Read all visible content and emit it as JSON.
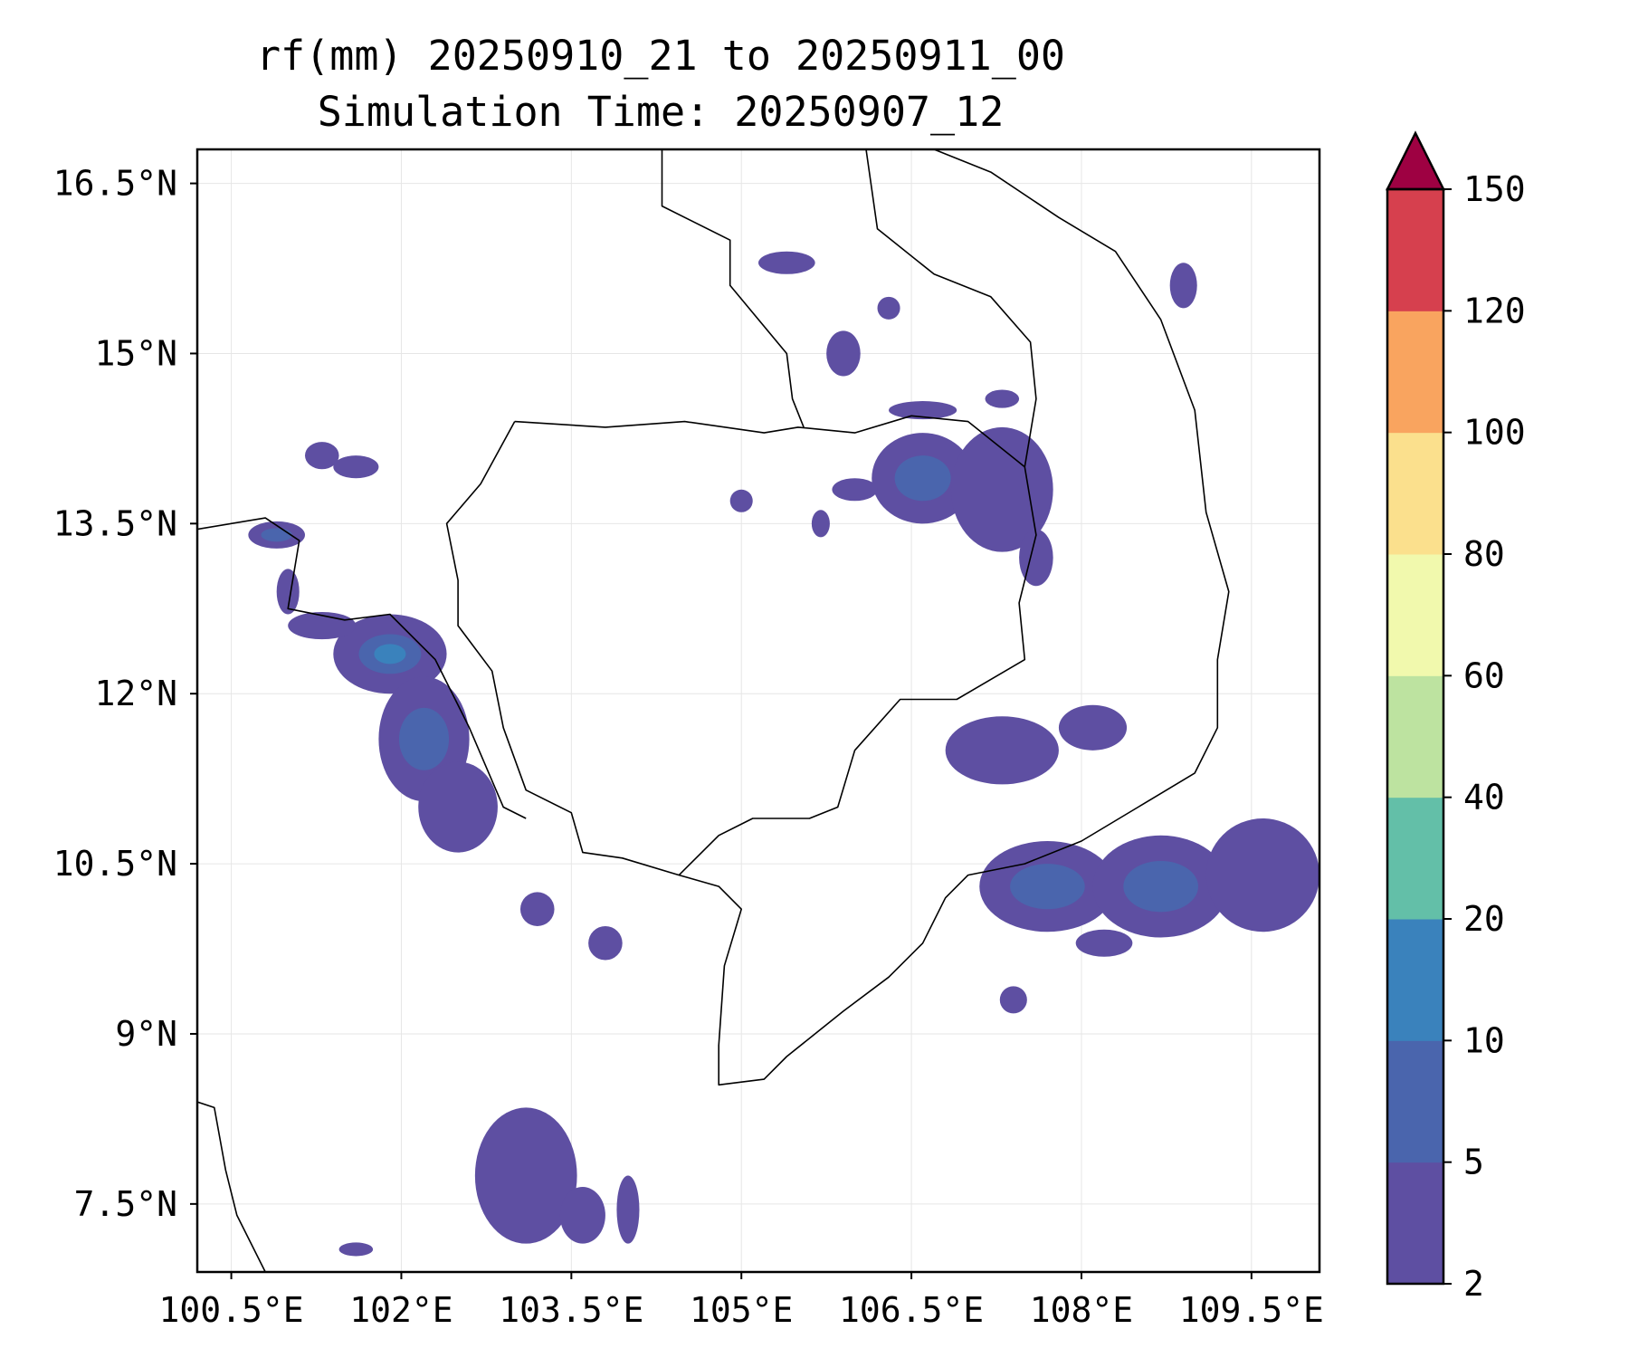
{
  "title": {
    "line1": "rf(mm) 20250910_21 to 20250911_00",
    "line2": "Simulation Time: 20250907_12"
  },
  "map": {
    "lon_range": [
      100.2,
      110.1
    ],
    "lat_range": [
      6.9,
      16.8
    ],
    "lon_ticks": [
      {
        "value": 100.5,
        "label": "100.5°E"
      },
      {
        "value": 102.0,
        "label": "102°E"
      },
      {
        "value": 103.5,
        "label": "103.5°E"
      },
      {
        "value": 105.0,
        "label": "105°E"
      },
      {
        "value": 106.5,
        "label": "106.5°E"
      },
      {
        "value": 108.0,
        "label": "108°E"
      },
      {
        "value": 109.5,
        "label": "109.5°E"
      }
    ],
    "lat_ticks": [
      {
        "value": 16.5,
        "label": "16.5°N"
      },
      {
        "value": 15.0,
        "label": "15°N"
      },
      {
        "value": 13.5,
        "label": "13.5°N"
      },
      {
        "value": 12.0,
        "label": "12°N"
      },
      {
        "value": 10.5,
        "label": "10.5°N"
      },
      {
        "value": 9.0,
        "label": "9°N"
      },
      {
        "value": 7.5,
        "label": "7.5°N"
      }
    ],
    "gridlines": true,
    "boundaries": {
      "cambodia": [
        [
          103.0,
          14.4
        ],
        [
          103.8,
          14.35
        ],
        [
          104.5,
          14.4
        ],
        [
          105.2,
          14.3
        ],
        [
          105.5,
          14.35
        ],
        [
          106.0,
          14.3
        ],
        [
          106.5,
          14.45
        ],
        [
          107.0,
          14.4
        ],
        [
          107.5,
          14.0
        ],
        [
          107.6,
          13.4
        ],
        [
          107.45,
          12.8
        ],
        [
          107.5,
          12.3
        ],
        [
          106.9,
          11.95
        ],
        [
          106.4,
          11.95
        ],
        [
          106.0,
          11.5
        ],
        [
          105.85,
          11.0
        ],
        [
          105.6,
          10.9
        ],
        [
          105.1,
          10.9
        ],
        [
          104.8,
          10.75
        ],
        [
          104.45,
          10.4
        ],
        [
          103.95,
          10.55
        ],
        [
          103.6,
          10.6
        ],
        [
          103.5,
          10.95
        ],
        [
          103.1,
          11.15
        ],
        [
          102.9,
          11.7
        ],
        [
          102.8,
          12.2
        ],
        [
          102.5,
          12.6
        ],
        [
          102.5,
          13.0
        ],
        [
          102.4,
          13.5
        ],
        [
          102.7,
          13.85
        ],
        [
          103.0,
          14.4
        ]
      ],
      "vietnam_west": [
        [
          104.3,
          16.8
        ],
        [
          104.3,
          16.3
        ],
        [
          104.9,
          16.0
        ],
        [
          104.9,
          15.6
        ],
        [
          105.4,
          15.0
        ],
        [
          105.45,
          14.6
        ],
        [
          105.55,
          14.35
        ]
      ],
      "laos_south": [
        [
          106.1,
          16.8
        ],
        [
          106.2,
          16.1
        ],
        [
          106.7,
          15.7
        ],
        [
          107.2,
          15.5
        ],
        [
          107.55,
          15.1
        ],
        [
          107.6,
          14.6
        ],
        [
          107.5,
          14.0
        ]
      ],
      "thailand_west": [
        [
          100.2,
          13.45
        ],
        [
          100.8,
          13.55
        ],
        [
          101.1,
          13.35
        ],
        [
          101.0,
          12.75
        ],
        [
          101.5,
          12.65
        ],
        [
          101.9,
          12.7
        ],
        [
          102.3,
          12.3
        ],
        [
          102.6,
          11.7
        ],
        [
          102.9,
          11.0
        ],
        [
          103.1,
          10.9
        ]
      ],
      "vietnam_coast": [
        [
          106.7,
          16.8
        ],
        [
          107.2,
          16.6
        ],
        [
          107.8,
          16.2
        ],
        [
          108.3,
          15.9
        ],
        [
          108.7,
          15.3
        ],
        [
          109.0,
          14.5
        ],
        [
          109.1,
          13.6
        ],
        [
          109.3,
          12.9
        ],
        [
          109.2,
          12.3
        ],
        [
          109.2,
          11.7
        ],
        [
          109.0,
          11.3
        ],
        [
          108.5,
          11.0
        ],
        [
          108.0,
          10.7
        ],
        [
          107.5,
          10.5
        ],
        [
          107.0,
          10.4
        ],
        [
          106.8,
          10.2
        ],
        [
          106.6,
          9.8
        ],
        [
          106.3,
          9.5
        ],
        [
          105.9,
          9.2
        ],
        [
          105.4,
          8.8
        ],
        [
          105.2,
          8.6
        ],
        [
          104.8,
          8.55
        ],
        [
          104.8,
          8.9
        ],
        [
          104.85,
          9.6
        ],
        [
          105.0,
          10.1
        ],
        [
          104.8,
          10.3
        ],
        [
          104.45,
          10.4
        ]
      ],
      "malay_coast": [
        [
          100.2,
          8.4
        ],
        [
          100.35,
          8.35
        ],
        [
          100.45,
          7.8
        ],
        [
          100.55,
          7.4
        ],
        [
          100.8,
          6.9
        ]
      ]
    },
    "rain_cells": [
      {
        "lon": 101.9,
        "lat": 12.35,
        "rx": 0.5,
        "ry": 0.35,
        "level": 3
      },
      {
        "lon": 102.2,
        "lat": 11.6,
        "rx": 0.4,
        "ry": 0.55,
        "level": 2
      },
      {
        "lon": 102.5,
        "lat": 11.0,
        "rx": 0.35,
        "ry": 0.4,
        "level": 1
      },
      {
        "lon": 101.3,
        "lat": 12.6,
        "rx": 0.3,
        "ry": 0.12,
        "level": 1
      },
      {
        "lon": 100.9,
        "lat": 13.4,
        "rx": 0.25,
        "ry": 0.12,
        "level": 2
      },
      {
        "lon": 101.0,
        "lat": 12.9,
        "rx": 0.1,
        "ry": 0.2,
        "level": 1
      },
      {
        "lon": 101.6,
        "lat": 14.0,
        "rx": 0.2,
        "ry": 0.1,
        "level": 1
      },
      {
        "lon": 101.3,
        "lat": 14.1,
        "rx": 0.15,
        "ry": 0.12,
        "level": 1
      },
      {
        "lon": 103.2,
        "lat": 10.1,
        "rx": 0.15,
        "ry": 0.15,
        "level": 1
      },
      {
        "lon": 103.8,
        "lat": 9.8,
        "rx": 0.15,
        "ry": 0.15,
        "level": 1
      },
      {
        "lon": 103.1,
        "lat": 7.75,
        "rx": 0.45,
        "ry": 0.6,
        "level": 1
      },
      {
        "lon": 103.6,
        "lat": 7.4,
        "rx": 0.2,
        "ry": 0.25,
        "level": 1
      },
      {
        "lon": 104.0,
        "lat": 7.45,
        "rx": 0.1,
        "ry": 0.3,
        "level": 1
      },
      {
        "lon": 106.6,
        "lat": 13.9,
        "rx": 0.45,
        "ry": 0.4,
        "level": 2
      },
      {
        "lon": 107.3,
        "lat": 13.8,
        "rx": 0.45,
        "ry": 0.55,
        "level": 1
      },
      {
        "lon": 107.6,
        "lat": 13.2,
        "rx": 0.15,
        "ry": 0.25,
        "level": 1
      },
      {
        "lon": 106.0,
        "lat": 13.8,
        "rx": 0.2,
        "ry": 0.1,
        "level": 1
      },
      {
        "lon": 106.6,
        "lat": 14.5,
        "rx": 0.3,
        "ry": 0.08,
        "level": 1
      },
      {
        "lon": 107.3,
        "lat": 14.6,
        "rx": 0.15,
        "ry": 0.08,
        "level": 1
      },
      {
        "lon": 105.4,
        "lat": 15.8,
        "rx": 0.25,
        "ry": 0.1,
        "level": 1
      },
      {
        "lon": 105.9,
        "lat": 15.0,
        "rx": 0.15,
        "ry": 0.2,
        "level": 1
      },
      {
        "lon": 106.3,
        "lat": 15.4,
        "rx": 0.1,
        "ry": 0.1,
        "level": 1
      },
      {
        "lon": 105.0,
        "lat": 13.7,
        "rx": 0.1,
        "ry": 0.1,
        "level": 1
      },
      {
        "lon": 105.7,
        "lat": 13.5,
        "rx": 0.08,
        "ry": 0.12,
        "level": 1
      },
      {
        "lon": 108.9,
        "lat": 15.6,
        "rx": 0.12,
        "ry": 0.2,
        "level": 1
      },
      {
        "lon": 107.3,
        "lat": 11.5,
        "rx": 0.5,
        "ry": 0.3,
        "level": 1
      },
      {
        "lon": 108.1,
        "lat": 11.7,
        "rx": 0.3,
        "ry": 0.2,
        "level": 1
      },
      {
        "lon": 107.7,
        "lat": 10.3,
        "rx": 0.6,
        "ry": 0.4,
        "level": 2
      },
      {
        "lon": 108.7,
        "lat": 10.3,
        "rx": 0.6,
        "ry": 0.45,
        "level": 2
      },
      {
        "lon": 109.6,
        "lat": 10.4,
        "rx": 0.5,
        "ry": 0.5,
        "level": 1
      },
      {
        "lon": 107.4,
        "lat": 9.3,
        "rx": 0.12,
        "ry": 0.12,
        "level": 1
      },
      {
        "lon": 108.2,
        "lat": 9.8,
        "rx": 0.25,
        "ry": 0.12,
        "level": 1
      },
      {
        "lon": 101.6,
        "lat": 7.1,
        "rx": 0.15,
        "ry": 0.06,
        "level": 1
      }
    ]
  },
  "colorbar": {
    "levels": [
      "2",
      "5",
      "10",
      "20",
      "40",
      "60",
      "80",
      "100",
      "120",
      "150"
    ],
    "colors": [
      "#5e4fa2",
      "#4a65ad",
      "#3a82bc",
      "#63bfa8",
      "#bde3a0",
      "#f1f9ad",
      "#fbe08d",
      "#f9a45f",
      "#d6404e",
      "#9e0142"
    ],
    "extend": "max"
  }
}
